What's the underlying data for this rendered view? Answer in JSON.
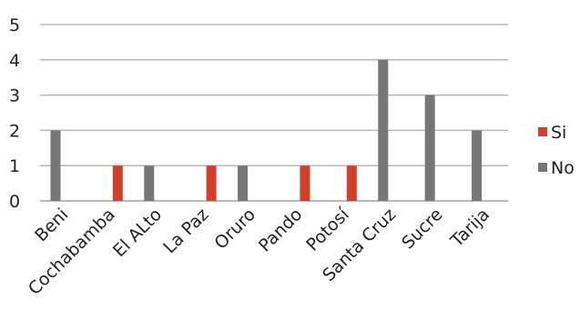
{
  "chart_data": {
    "type": "bar",
    "categories": [
      "Beni",
      "Cochabamba",
      "El ALto",
      "La Paz",
      "Oruro",
      "Pando",
      "Potosí",
      "Santa Cruz",
      "Sucre",
      "Tarija"
    ],
    "series": [
      {
        "name": "Si",
        "color": "#d23f2b",
        "values": [
          0,
          1,
          0,
          1,
          0,
          1,
          1,
          0,
          0,
          0
        ]
      },
      {
        "name": "No",
        "color": "#777777",
        "values": [
          2,
          0,
          1,
          0,
          1,
          0,
          0,
          4,
          3,
          2
        ]
      }
    ],
    "y_ticks": [
      "0",
      "1",
      "2",
      "3",
      "4",
      "5"
    ],
    "ylim": [
      0,
      5
    ],
    "grid": true,
    "legend_position": "right"
  }
}
